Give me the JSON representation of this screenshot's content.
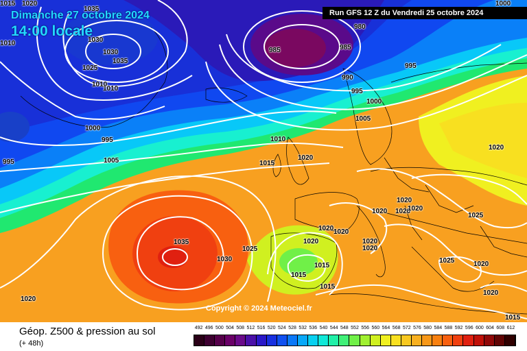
{
  "header": {
    "date_label": "Dimanche 27 octobre 2024",
    "time_label": "14:00 locale",
    "run_label": "Run GFS 12 Z du Vendredi 25 octobre 2024"
  },
  "copyright": "Copyright © 2024 Meteociel.fr",
  "footer": {
    "title": "Géop. Z500 & pression au sol",
    "subtitle": "(+ 48h)"
  },
  "legend": {
    "values": [
      "492",
      "496",
      "500",
      "504",
      "508",
      "512",
      "516",
      "520",
      "524",
      "528",
      "532",
      "536",
      "540",
      "544",
      "548",
      "552",
      "556",
      "560",
      "564",
      "568",
      "572",
      "576",
      "580",
      "584",
      "588",
      "592",
      "596",
      "600",
      "604",
      "608",
      "612"
    ],
    "colors": [
      "#2a0017",
      "#3d0030",
      "#55004a",
      "#6a0068",
      "#6a0a8a",
      "#4a10a8",
      "#2a18c8",
      "#1830e0",
      "#1050f0",
      "#0a78f8",
      "#08a8f8",
      "#08d0f0",
      "#10e8d8",
      "#20f0a8",
      "#40f078",
      "#70f048",
      "#a0f030",
      "#d0f020",
      "#f0f020",
      "#f8e020",
      "#f8c820",
      "#f8b020",
      "#f89818",
      "#f88010",
      "#f86010",
      "#f04010",
      "#e02010",
      "#c01008",
      "#900808",
      "#600404",
      "#300000"
    ]
  },
  "isobars": [
    {
      "label": "1020",
      "pos": "top-left"
    },
    {
      "label": "1035"
    },
    {
      "label": "1030"
    },
    {
      "label": "1030"
    },
    {
      "label": "1035"
    },
    {
      "label": "1025"
    },
    {
      "label": "1010"
    },
    {
      "label": "1010"
    },
    {
      "label": "1010"
    },
    {
      "label": "985"
    },
    {
      "label": "980"
    },
    {
      "label": "985"
    },
    {
      "label": "990"
    },
    {
      "label": "995"
    },
    {
      "label": "995"
    },
    {
      "label": "1000"
    },
    {
      "label": "1005"
    },
    {
      "label": "1000"
    },
    {
      "label": "995"
    },
    {
      "label": "1005"
    },
    {
      "label": "995"
    },
    {
      "label": "1010"
    },
    {
      "label": "1015"
    },
    {
      "label": "1020"
    },
    {
      "label": "1035"
    },
    {
      "label": "1030"
    },
    {
      "label": "1025"
    },
    {
      "label": "1020"
    },
    {
      "label": "1020"
    },
    {
      "label": "1020"
    },
    {
      "label": "1015"
    },
    {
      "label": "1015"
    },
    {
      "label": "1015"
    },
    {
      "label": "1020"
    },
    {
      "label": "1020"
    },
    {
      "label": "1020"
    },
    {
      "label": "1020"
    },
    {
      "label": "1020"
    },
    {
      "label": "1020"
    },
    {
      "label": "1020"
    },
    {
      "label": "1020"
    },
    {
      "label": "1025"
    },
    {
      "label": "1025"
    },
    {
      "label": "1020"
    },
    {
      "label": "1020"
    },
    {
      "label": "1015"
    },
    {
      "label": "1000"
    },
    {
      "label": "1015"
    }
  ]
}
